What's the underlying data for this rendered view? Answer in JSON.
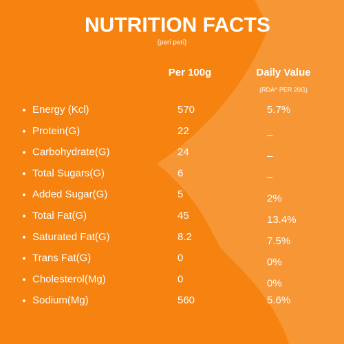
{
  "header": {
    "title": "NUTRITION FACTS",
    "subtitle": "(peri peri)"
  },
  "table": {
    "columns": [
      "Per 100g",
      "Daily Value"
    ],
    "daily_value_note": "(RDA^ PER 20G)",
    "rows": [
      {
        "label": "Energy (Kcl)",
        "per_100g": "570",
        "daily_value": "5.7%"
      },
      {
        "label": "Protein(G)",
        "per_100g": "22",
        "daily_value": "–"
      },
      {
        "label": "Carbohydrate(G)",
        "per_100g": "24",
        "daily_value": "–"
      },
      {
        "label": "Total Sugars(G)",
        "per_100g": "6",
        "daily_value": "–"
      },
      {
        "label": "Added Sugar(G)",
        "per_100g": "5",
        "daily_value": "2%"
      },
      {
        "label": "Total Fat(G)",
        "per_100g": "45",
        "daily_value": "13.4%"
      },
      {
        "label": "Saturated Fat(G)",
        "per_100g": "8.2",
        "daily_value": "7.5%"
      },
      {
        "label": "Trans Fat(G)",
        "per_100g": "0",
        "daily_value": "0%"
      },
      {
        "label": "Cholesterol(Mg)",
        "per_100g": "0",
        "daily_value": "0%"
      },
      {
        "label": "Sodium(Mg)",
        "per_100g": "560",
        "daily_value": "5.6%"
      }
    ]
  }
}
